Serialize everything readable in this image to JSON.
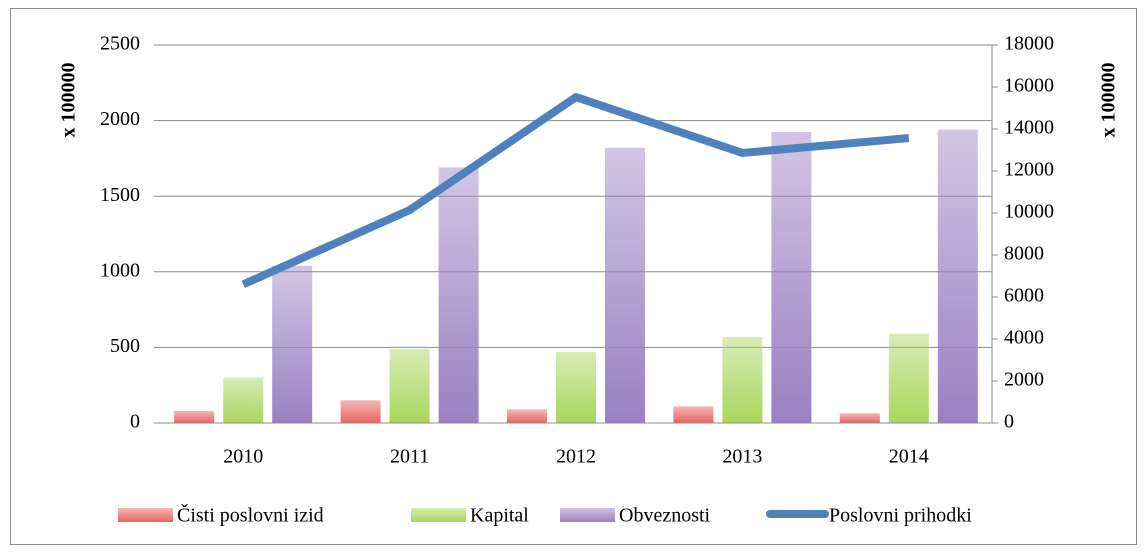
{
  "chart_data": {
    "type": "bar",
    "categories": [
      "2010",
      "2011",
      "2012",
      "2013",
      "2014"
    ],
    "series": [
      {
        "name": "Čisti poslovni izid",
        "color": "#e8625f",
        "values": [
          80,
          150,
          90,
          110,
          65
        ]
      },
      {
        "name": "Kapital",
        "color": "#a8d65c",
        "values": [
          300,
          490,
          470,
          570,
          590
        ]
      },
      {
        "name": "Obveznosti",
        "color": "#9a80c2",
        "values": [
          1040,
          1690,
          1820,
          1925,
          1940
        ]
      },
      {
        "name": "Poslovni prihodki",
        "color": "#4f81bd",
        "type": "line",
        "axis": "y2",
        "values": [
          6600,
          10140,
          15520,
          12860,
          13570
        ]
      }
    ],
    "ylabel": "x 100000",
    "y2label": "x 100000",
    "ylim": [
      0,
      2500
    ],
    "yticks": [
      0,
      500,
      1000,
      1500,
      2000,
      2500
    ],
    "y2lim": [
      0,
      18000
    ],
    "y2ticks": [
      0,
      2000,
      4000,
      6000,
      8000,
      10000,
      12000,
      14000,
      16000,
      18000
    ],
    "grid": true,
    "legend": "bottom"
  }
}
